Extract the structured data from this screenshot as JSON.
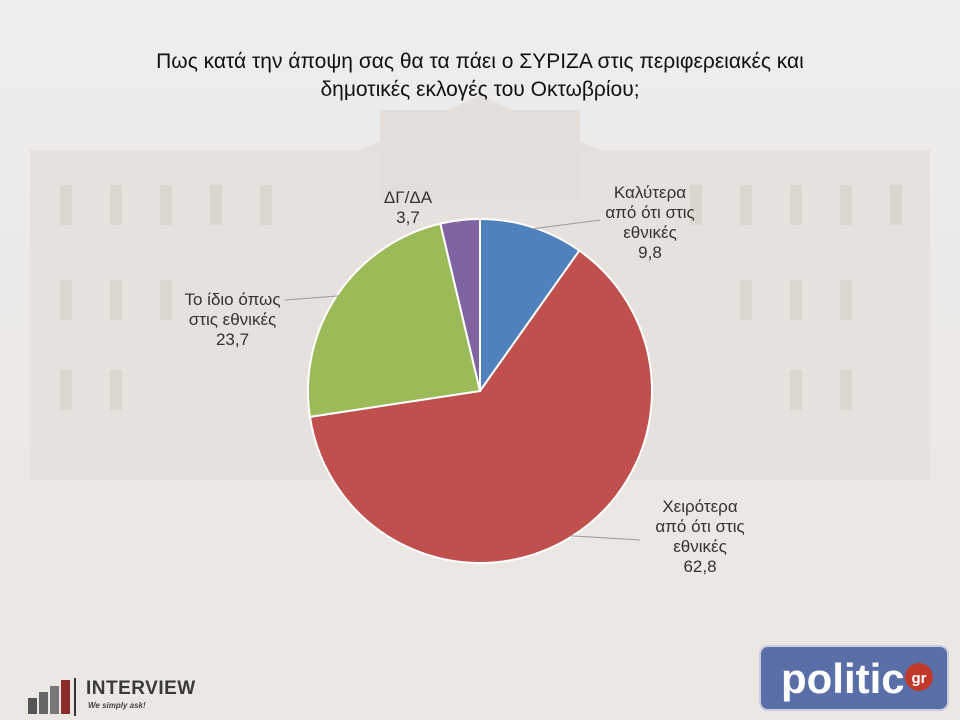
{
  "title_lines": [
    "Πως κατά την άποψη σας θα τα πάει ο ΣΥΡΙΖΑ στις περιφερειακές και",
    "δημοτικές εκλογές του Οκτωβρίου;"
  ],
  "chart_data": {
    "type": "pie",
    "title": "Πως κατά την άποψη σας θα τα πάει ο ΣΥΡΙΖΑ στις περιφερειακές και δημοτικές εκλογές του Οκτωβρίου;",
    "start_angle_deg": 0,
    "direction": "clockwise",
    "slices": [
      {
        "label_lines": [
          "Καλύτερα",
          "από ότι στις",
          "εθνικές"
        ],
        "value": 9.8,
        "value_label": "9,8",
        "color": "#4f81bd"
      },
      {
        "label_lines": [
          "Χειρότερα",
          "από ότι στις",
          "εθνικές"
        ],
        "value": 62.8,
        "value_label": "62,8",
        "color": "#c0504d"
      },
      {
        "label_lines": [
          "Το ίδιο όπως",
          "στις εθνικές"
        ],
        "value": 23.7,
        "value_label": "23,7",
        "color": "#9bbb59"
      },
      {
        "label_lines": [
          "ΔΓ/ΔΑ"
        ],
        "value": 3.7,
        "value_label": "3,7",
        "color": "#8064a2"
      }
    ]
  },
  "logos": {
    "interview_name": "INTERVIEW",
    "interview_tagline": "We simply ask!",
    "politic_text": "politic",
    "politic_suffix": "gr",
    "politic_color": "#5a6fa8"
  }
}
